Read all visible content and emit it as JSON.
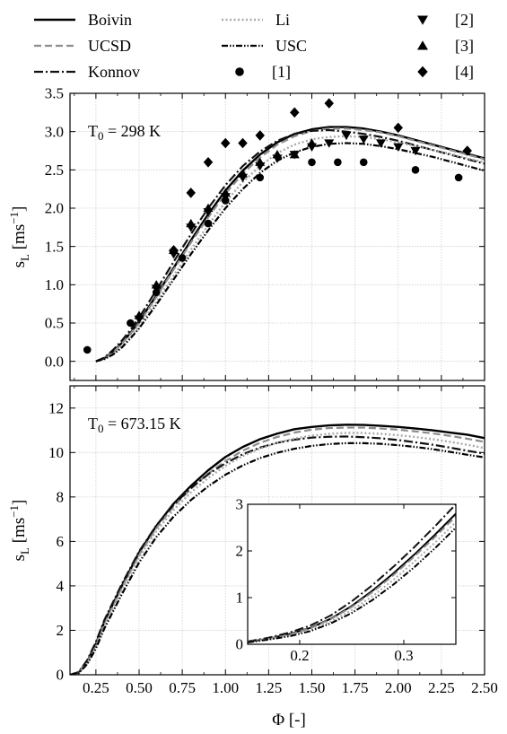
{
  "figure": {
    "xlabel": "Φ [-]",
    "legend": {
      "placement": "top",
      "items": [
        {
          "label": "Boivin",
          "kind": "line",
          "series": "Boivin"
        },
        {
          "label": "Li",
          "kind": "line",
          "series": "Li"
        },
        {
          "label": "[2]",
          "kind": "marker",
          "series": "[2]"
        },
        {
          "label": "UCSD",
          "kind": "line",
          "series": "UCSD"
        },
        {
          "label": "USC",
          "kind": "line",
          "series": "USC"
        },
        {
          "label": "[3]",
          "kind": "marker",
          "series": "[3]"
        },
        {
          "label": "Konnov",
          "kind": "line",
          "series": "Konnov"
        },
        {
          "label": "[1]",
          "kind": "marker",
          "series": "[1]"
        },
        {
          "label": "[4]",
          "kind": "marker",
          "series": "[4]"
        }
      ]
    },
    "styles": {
      "Boivin": {
        "color": "#000000",
        "dash": "",
        "width": 2.4
      },
      "UCSD": {
        "color": "#8c8c8c",
        "dash": "8 4",
        "width": 2.2
      },
      "Konnov": {
        "color": "#111111",
        "dash": "10 3 2 3",
        "width": 2.2
      },
      "Li": {
        "color": "#aaaaaa",
        "dash": "2 2.5",
        "width": 2.4
      },
      "USC": {
        "color": "#000000",
        "dash": "7 2 1.5 2 1.5 2",
        "width": 2.2
      },
      "[1]": {
        "color": "#000000",
        "marker": "circle"
      },
      "[2]": {
        "color": "#000000",
        "marker": "triangle-down"
      },
      "[3]": {
        "color": "#000000",
        "marker": "triangle-up"
      },
      "[4]": {
        "color": "#000000",
        "marker": "diamond"
      }
    }
  },
  "chart_data": [
    {
      "type": "line",
      "annotation": "T₀ = 298 K",
      "ylabel": "s_L [ms⁻¹]",
      "xlim": [
        0.1,
        2.5
      ],
      "ylim": [
        -0.25,
        3.5
      ],
      "xticks": [
        0.25,
        0.5,
        0.75,
        1.0,
        1.25,
        1.5,
        1.75,
        2.0,
        2.25,
        2.5
      ],
      "xticklabels": [
        "0.25",
        "0.50",
        "0.75",
        "1.00",
        "1.25",
        "1.50",
        "1.75",
        "2.00",
        "2.25",
        "2.50"
      ],
      "show_xticklabels": false,
      "yticks": [
        0,
        0.5,
        1.0,
        1.5,
        2.0,
        2.5,
        3.0,
        3.5
      ],
      "yticklabels": [
        "0.0",
        "0.5",
        "1.0",
        "1.5",
        "2.0",
        "2.5",
        "3.0",
        "3.5"
      ],
      "grid": true,
      "series": [
        {
          "name": "Boivin",
          "x": [
            0.25,
            0.3,
            0.35,
            0.4,
            0.45,
            0.5,
            0.6,
            0.7,
            0.8,
            0.9,
            1.0,
            1.1,
            1.2,
            1.3,
            1.4,
            1.5,
            1.6,
            1.7,
            1.8,
            1.9,
            2.0,
            2.1,
            2.2,
            2.3,
            2.4,
            2.5
          ],
          "y": [
            0.0,
            0.04,
            0.13,
            0.24,
            0.37,
            0.52,
            0.86,
            1.22,
            1.58,
            1.92,
            2.23,
            2.49,
            2.7,
            2.86,
            2.97,
            3.03,
            3.06,
            3.06,
            3.04,
            3.0,
            2.95,
            2.89,
            2.83,
            2.77,
            2.71,
            2.65
          ]
        },
        {
          "name": "UCSD",
          "x": [
            0.25,
            0.3,
            0.35,
            0.4,
            0.45,
            0.5,
            0.6,
            0.7,
            0.8,
            0.9,
            1.0,
            1.1,
            1.2,
            1.3,
            1.4,
            1.5,
            1.6,
            1.7,
            1.8,
            1.9,
            2.0,
            2.1,
            2.2,
            2.3,
            2.4,
            2.5
          ],
          "y": [
            0.0,
            0.04,
            0.12,
            0.23,
            0.36,
            0.5,
            0.84,
            1.2,
            1.55,
            1.88,
            2.19,
            2.45,
            2.66,
            2.83,
            2.94,
            3.01,
            3.04,
            3.04,
            3.02,
            2.99,
            2.94,
            2.88,
            2.82,
            2.76,
            2.7,
            2.64
          ]
        },
        {
          "name": "Konnov",
          "x": [
            0.25,
            0.3,
            0.35,
            0.4,
            0.45,
            0.5,
            0.6,
            0.7,
            0.8,
            0.9,
            1.0,
            1.1,
            1.2,
            1.3,
            1.4,
            1.5,
            1.6,
            1.7,
            1.8,
            1.9,
            2.0,
            2.1,
            2.2,
            2.3,
            2.4,
            2.5
          ],
          "y": [
            0.0,
            0.05,
            0.15,
            0.27,
            0.41,
            0.57,
            0.93,
            1.3,
            1.66,
            2.0,
            2.3,
            2.55,
            2.74,
            2.88,
            2.97,
            3.01,
            3.02,
            3.0,
            2.97,
            2.93,
            2.88,
            2.82,
            2.76,
            2.7,
            2.64,
            2.58
          ]
        },
        {
          "name": "Li",
          "x": [
            0.25,
            0.3,
            0.35,
            0.4,
            0.45,
            0.5,
            0.6,
            0.7,
            0.8,
            0.9,
            1.0,
            1.1,
            1.2,
            1.3,
            1.4,
            1.5,
            1.6,
            1.7,
            1.8,
            1.9,
            2.0,
            2.1,
            2.2,
            2.3,
            2.4,
            2.5
          ],
          "y": [
            0.0,
            0.03,
            0.1,
            0.2,
            0.32,
            0.46,
            0.78,
            1.12,
            1.46,
            1.78,
            2.08,
            2.34,
            2.55,
            2.72,
            2.83,
            2.9,
            2.93,
            2.94,
            2.93,
            2.9,
            2.86,
            2.81,
            2.76,
            2.71,
            2.65,
            2.6
          ]
        },
        {
          "name": "USC",
          "x": [
            0.25,
            0.3,
            0.35,
            0.4,
            0.45,
            0.5,
            0.6,
            0.7,
            0.8,
            0.9,
            1.0,
            1.1,
            1.2,
            1.3,
            1.4,
            1.5,
            1.6,
            1.7,
            1.8,
            1.9,
            2.0,
            2.1,
            2.2,
            2.3,
            2.4,
            2.5
          ],
          "y": [
            0.0,
            0.03,
            0.09,
            0.18,
            0.3,
            0.43,
            0.74,
            1.07,
            1.4,
            1.71,
            2.0,
            2.25,
            2.46,
            2.62,
            2.73,
            2.8,
            2.84,
            2.85,
            2.84,
            2.81,
            2.77,
            2.72,
            2.67,
            2.61,
            2.55,
            2.49
          ]
        },
        {
          "name": "[1]",
          "x": [
            0.2,
            0.45,
            0.6,
            0.75,
            0.9,
            1.0,
            1.2,
            1.5,
            1.65,
            1.8,
            2.1,
            2.35
          ],
          "y": [
            0.15,
            0.5,
            0.9,
            1.35,
            1.8,
            2.1,
            2.4,
            2.6,
            2.6,
            2.6,
            2.5,
            2.4
          ]
        },
        {
          "name": "[2]",
          "x": [
            0.5,
            0.6,
            0.7,
            0.8,
            0.9,
            1.0,
            1.1,
            1.2,
            1.3,
            1.4,
            1.5,
            1.6,
            1.7,
            1.8,
            1.9,
            2.0,
            2.1
          ],
          "y": [
            0.55,
            0.95,
            1.4,
            1.75,
            1.95,
            2.15,
            2.4,
            2.55,
            2.65,
            2.7,
            2.8,
            2.85,
            2.95,
            2.9,
            2.85,
            2.8,
            2.75
          ]
        },
        {
          "name": "[3]",
          "x": [
            0.5,
            0.6,
            0.7,
            0.8,
            0.9,
            1.0,
            1.1,
            1.2,
            1.3,
            1.4,
            1.5
          ],
          "y": [
            0.6,
            1.0,
            1.45,
            1.8,
            2.0,
            2.2,
            2.45,
            2.6,
            2.7,
            2.7,
            2.85
          ]
        },
        {
          "name": "[4]",
          "x": [
            0.7,
            0.8,
            0.9,
            1.0,
            1.1,
            1.2,
            1.4,
            1.6,
            2.0,
            2.4
          ],
          "y": [
            1.45,
            2.2,
            2.6,
            2.85,
            2.85,
            2.95,
            3.25,
            3.37,
            3.05,
            2.75
          ]
        }
      ]
    },
    {
      "type": "line",
      "annotation": "T₀ = 673.15 K",
      "ylabel": "s_L [ms⁻¹]",
      "xlabel": "Φ [-]",
      "xlim": [
        0.1,
        2.5
      ],
      "ylim": [
        0,
        13
      ],
      "xticks": [
        0.25,
        0.5,
        0.75,
        1.0,
        1.25,
        1.5,
        1.75,
        2.0,
        2.25,
        2.5
      ],
      "xticklabels": [
        "0.25",
        "0.50",
        "0.75",
        "1.00",
        "1.25",
        "1.50",
        "1.75",
        "2.00",
        "2.25",
        "2.50"
      ],
      "show_xticklabels": true,
      "yticks": [
        0,
        2,
        4,
        6,
        8,
        10,
        12
      ],
      "yticklabels": [
        "0",
        "2",
        "4",
        "6",
        "8",
        "10",
        "12"
      ],
      "grid": true,
      "series": [
        {
          "name": "Boivin",
          "x": [
            0.1,
            0.15,
            0.2,
            0.25,
            0.3,
            0.4,
            0.5,
            0.6,
            0.7,
            0.8,
            0.9,
            1.0,
            1.1,
            1.2,
            1.3,
            1.4,
            1.5,
            1.6,
            1.7,
            1.8,
            1.9,
            2.0,
            2.1,
            2.2,
            2.3,
            2.4,
            2.5
          ],
          "y": [
            0.0,
            0.1,
            0.6,
            1.4,
            2.4,
            4.0,
            5.5,
            6.7,
            7.7,
            8.5,
            9.2,
            9.8,
            10.25,
            10.6,
            10.85,
            11.05,
            11.15,
            11.22,
            11.25,
            11.24,
            11.2,
            11.15,
            11.08,
            11.0,
            10.9,
            10.8,
            10.65
          ]
        },
        {
          "name": "UCSD",
          "x": [
            0.1,
            0.15,
            0.2,
            0.25,
            0.3,
            0.4,
            0.5,
            0.6,
            0.7,
            0.8,
            0.9,
            1.0,
            1.1,
            1.2,
            1.3,
            1.4,
            1.5,
            1.6,
            1.7,
            1.8,
            1.9,
            2.0,
            2.1,
            2.2,
            2.3,
            2.4,
            2.5
          ],
          "y": [
            0.0,
            0.1,
            0.58,
            1.36,
            2.34,
            3.92,
            5.4,
            6.6,
            7.58,
            8.37,
            9.05,
            9.62,
            10.08,
            10.44,
            10.7,
            10.9,
            11.03,
            11.1,
            11.12,
            11.12,
            11.08,
            11.03,
            10.95,
            10.86,
            10.75,
            10.62,
            10.48
          ]
        },
        {
          "name": "Konnov",
          "x": [
            0.1,
            0.15,
            0.2,
            0.25,
            0.3,
            0.4,
            0.5,
            0.6,
            0.7,
            0.8,
            0.9,
            1.0,
            1.1,
            1.2,
            1.3,
            1.4,
            1.5,
            1.6,
            1.7,
            1.8,
            1.9,
            2.0,
            2.1,
            2.2,
            2.3,
            2.4,
            2.5
          ],
          "y": [
            0.0,
            0.12,
            0.66,
            1.48,
            2.48,
            4.08,
            5.55,
            6.72,
            7.65,
            8.4,
            9.02,
            9.52,
            9.92,
            10.22,
            10.44,
            10.58,
            10.67,
            10.71,
            10.72,
            10.69,
            10.64,
            10.56,
            10.46,
            10.35,
            10.22,
            10.08,
            9.95
          ]
        },
        {
          "name": "Li",
          "x": [
            0.1,
            0.15,
            0.2,
            0.25,
            0.3,
            0.4,
            0.5,
            0.6,
            0.7,
            0.8,
            0.9,
            1.0,
            1.1,
            1.2,
            1.3,
            1.4,
            1.5,
            1.6,
            1.7,
            1.8,
            1.9,
            2.0,
            2.1,
            2.2,
            2.3,
            2.4,
            2.5
          ],
          "y": [
            0.0,
            0.08,
            0.52,
            1.26,
            2.22,
            3.8,
            5.27,
            6.46,
            7.42,
            8.2,
            8.85,
            9.4,
            9.84,
            10.18,
            10.44,
            10.63,
            10.76,
            10.84,
            10.88,
            10.88,
            10.84,
            10.78,
            10.7,
            10.6,
            10.48,
            10.35,
            10.2
          ]
        },
        {
          "name": "USC",
          "x": [
            0.1,
            0.15,
            0.2,
            0.25,
            0.3,
            0.4,
            0.5,
            0.6,
            0.7,
            0.8,
            0.9,
            1.0,
            1.1,
            1.2,
            1.3,
            1.4,
            1.5,
            1.6,
            1.7,
            1.8,
            1.9,
            2.0,
            2.1,
            2.2,
            2.3,
            2.4,
            2.5
          ],
          "y": [
            0.0,
            0.07,
            0.48,
            1.18,
            2.1,
            3.62,
            5.05,
            6.2,
            7.12,
            7.86,
            8.48,
            9.0,
            9.42,
            9.75,
            9.99,
            10.17,
            10.3,
            10.38,
            10.42,
            10.42,
            10.39,
            10.33,
            10.25,
            10.15,
            10.03,
            9.9,
            9.78
          ]
        }
      ]
    },
    {
      "type": "line",
      "role": "inset",
      "xlim": [
        0.15,
        0.35
      ],
      "ylim": [
        0,
        3
      ],
      "xticks": [
        0.2,
        0.3
      ],
      "xticklabels": [
        "0.2",
        "0.3"
      ],
      "yticks": [
        0,
        1,
        2,
        3
      ],
      "yticklabels": [
        "0",
        "1",
        "2",
        "3"
      ],
      "grid": false,
      "series": [
        {
          "name": "Boivin",
          "x": [
            0.15,
            0.17,
            0.19,
            0.21,
            0.23,
            0.25,
            0.27,
            0.29,
            0.31,
            0.33,
            0.35
          ],
          "y": [
            0.05,
            0.12,
            0.22,
            0.35,
            0.55,
            0.82,
            1.15,
            1.52,
            1.92,
            2.35,
            2.8
          ]
        },
        {
          "name": "UCSD",
          "x": [
            0.15,
            0.17,
            0.19,
            0.21,
            0.23,
            0.25,
            0.27,
            0.29,
            0.31,
            0.33,
            0.35
          ],
          "y": [
            0.05,
            0.12,
            0.21,
            0.34,
            0.54,
            0.8,
            1.12,
            1.48,
            1.88,
            2.3,
            2.74
          ]
        },
        {
          "name": "Konnov",
          "x": [
            0.15,
            0.17,
            0.19,
            0.21,
            0.23,
            0.25,
            0.27,
            0.29,
            0.31,
            0.33,
            0.35
          ],
          "y": [
            0.06,
            0.14,
            0.25,
            0.4,
            0.62,
            0.92,
            1.27,
            1.66,
            2.08,
            2.53,
            3.0
          ]
        },
        {
          "name": "Li",
          "x": [
            0.15,
            0.17,
            0.19,
            0.21,
            0.23,
            0.25,
            0.27,
            0.29,
            0.31,
            0.33,
            0.35
          ],
          "y": [
            0.05,
            0.11,
            0.19,
            0.31,
            0.49,
            0.73,
            1.03,
            1.38,
            1.77,
            2.18,
            2.62
          ]
        },
        {
          "name": "USC",
          "x": [
            0.15,
            0.17,
            0.19,
            0.21,
            0.23,
            0.25,
            0.27,
            0.29,
            0.31,
            0.33,
            0.35
          ],
          "y": [
            0.04,
            0.1,
            0.17,
            0.28,
            0.45,
            0.67,
            0.95,
            1.28,
            1.65,
            2.06,
            2.5
          ]
        }
      ]
    }
  ]
}
